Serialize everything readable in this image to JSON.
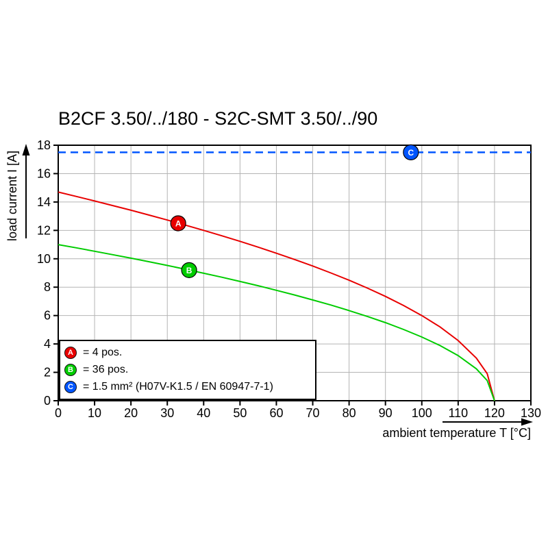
{
  "title": "B2CF 3.50/../180 - S2C-SMT 3.50/../90",
  "axes": {
    "x_label": "ambient temperature T [°C]",
    "y_label": "load current I [A]"
  },
  "legend": {
    "items": [
      {
        "letter": "A",
        "color": "#e80000",
        "label": "= 4 pos."
      },
      {
        "letter": "B",
        "color": "#00cc00",
        "label": "= 36 pos."
      },
      {
        "letter": "C",
        "color": "#0055ff",
        "label": "= 1.5 mm² (H07V-K1.5 / EN 60947-7-1)"
      }
    ]
  },
  "chart_data": {
    "type": "line",
    "title": "B2CF 3.50/../180 - S2C-SMT 3.50/../90",
    "xlabel": "ambient temperature T [°C]",
    "ylabel": "load current I [A]",
    "xlim": [
      0,
      130
    ],
    "ylim": [
      0,
      18
    ],
    "x_ticks": [
      0,
      10,
      20,
      30,
      40,
      50,
      60,
      70,
      80,
      90,
      100,
      110,
      120,
      130
    ],
    "y_ticks": [
      0,
      2,
      4,
      6,
      8,
      10,
      12,
      14,
      16,
      18
    ],
    "grid": true,
    "legend_position": "lower-left",
    "series": [
      {
        "name": "A",
        "label": "4 pos.",
        "color": "#e80000",
        "style": "solid",
        "x": [
          0,
          5,
          10,
          15,
          20,
          25,
          30,
          35,
          40,
          45,
          50,
          55,
          60,
          65,
          70,
          75,
          80,
          85,
          90,
          95,
          100,
          105,
          110,
          115,
          118,
          120
        ],
        "y": [
          14.7,
          14.39,
          14.07,
          13.75,
          13.42,
          13.08,
          12.73,
          12.37,
          12.0,
          11.62,
          11.23,
          10.82,
          10.39,
          9.95,
          9.49,
          9.0,
          8.49,
          7.94,
          7.35,
          6.71,
          6.0,
          5.2,
          4.24,
          3.0,
          1.9,
          0
        ],
        "marker": {
          "letter": "A",
          "x": 33,
          "y": 12.5
        }
      },
      {
        "name": "B",
        "label": "36 pos.",
        "color": "#00cc00",
        "style": "solid",
        "x": [
          0,
          5,
          10,
          15,
          20,
          25,
          30,
          35,
          40,
          45,
          50,
          55,
          60,
          65,
          70,
          75,
          80,
          85,
          90,
          95,
          100,
          105,
          110,
          115,
          118,
          120
        ],
        "y": [
          11.0,
          10.77,
          10.53,
          10.29,
          10.04,
          9.79,
          9.53,
          9.26,
          8.98,
          8.7,
          8.4,
          8.1,
          7.78,
          7.45,
          7.1,
          6.74,
          6.35,
          5.94,
          5.5,
          5.02,
          4.49,
          3.89,
          3.18,
          2.25,
          1.42,
          0
        ],
        "marker": {
          "letter": "B",
          "x": 36,
          "y": 9.2
        }
      },
      {
        "name": "C",
        "label": "1.5 mm² (H07V-K1.5 / EN 60947-7-1)",
        "color": "#0055ff",
        "style": "dashed",
        "x": [
          0,
          130
        ],
        "y": [
          17.5,
          17.5
        ],
        "marker": {
          "letter": "C",
          "x": 97,
          "y": 17.5
        }
      }
    ]
  }
}
